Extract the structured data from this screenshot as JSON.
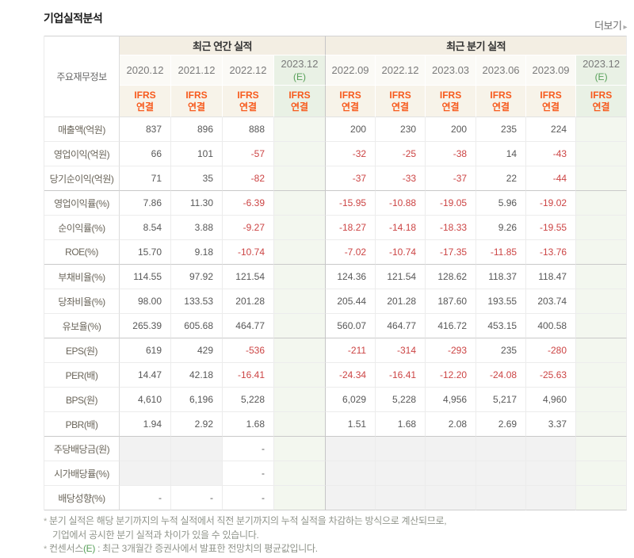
{
  "page": {
    "title": "기업실적분석",
    "more_label": "더보기",
    "more_arrow": "▸"
  },
  "colors": {
    "negative_value": "#cc4444",
    "estimate_green": "#58a05a",
    "ifrs_orange": "#f75a1d",
    "header_beige": "#f3eee3",
    "estimate_header_bg": "#e9f1e5",
    "estimate_body_bg": "#f3f7ef",
    "shaded_cell_bg": "#f2f2f2"
  },
  "table": {
    "corner_label": "주요재무정보",
    "groups": [
      {
        "label": "최근 연간 실적",
        "span": 4
      },
      {
        "label": "최근 분기 실적",
        "span": 6
      }
    ],
    "ifrs_label": {
      "line1": "IFRS",
      "line2": "연결"
    },
    "columns": [
      {
        "period": "2020.12",
        "estimate": false
      },
      {
        "period": "2021.12",
        "estimate": false
      },
      {
        "period": "2022.12",
        "estimate": false
      },
      {
        "period": "2023.12",
        "estimate": true,
        "estimate_suffix": "(E)"
      },
      {
        "period": "2022.09",
        "estimate": false
      },
      {
        "period": "2022.12",
        "estimate": false
      },
      {
        "period": "2023.03",
        "estimate": false
      },
      {
        "period": "2023.06",
        "estimate": false
      },
      {
        "period": "2023.09",
        "estimate": false
      },
      {
        "period": "2023.12",
        "estimate": true,
        "estimate_suffix": "(E)"
      }
    ],
    "rows": [
      {
        "label": "매출액(억원)",
        "values": [
          "837",
          "896",
          "888",
          "",
          "200",
          "230",
          "200",
          "235",
          "224",
          ""
        ]
      },
      {
        "label": "영업이익(억원)",
        "values": [
          "66",
          "101",
          "-57",
          "",
          "-32",
          "-25",
          "-38",
          "14",
          "-43",
          ""
        ]
      },
      {
        "label": "당기순이익(억원)",
        "values": [
          "71",
          "35",
          "-82",
          "",
          "-37",
          "-33",
          "-37",
          "22",
          "-44",
          ""
        ],
        "group_end": true
      },
      {
        "label": "영업이익률(%)",
        "values": [
          "7.86",
          "11.30",
          "-6.39",
          "",
          "-15.95",
          "-10.88",
          "-19.05",
          "5.96",
          "-19.02",
          ""
        ]
      },
      {
        "label": "순이익률(%)",
        "values": [
          "8.54",
          "3.88",
          "-9.27",
          "",
          "-18.27",
          "-14.18",
          "-18.33",
          "9.26",
          "-19.55",
          ""
        ]
      },
      {
        "label": "ROE(%)",
        "values": [
          "15.70",
          "9.18",
          "-10.74",
          "",
          "-7.02",
          "-10.74",
          "-17.35",
          "-11.85",
          "-13.76",
          ""
        ],
        "group_end": true
      },
      {
        "label": "부채비율(%)",
        "values": [
          "114.55",
          "97.92",
          "121.54",
          "",
          "124.36",
          "121.54",
          "128.62",
          "118.37",
          "118.47",
          ""
        ]
      },
      {
        "label": "당좌비율(%)",
        "values": [
          "98.00",
          "133.53",
          "201.28",
          "",
          "205.44",
          "201.28",
          "187.60",
          "193.55",
          "203.74",
          ""
        ]
      },
      {
        "label": "유보율(%)",
        "values": [
          "265.39",
          "605.68",
          "464.77",
          "",
          "560.07",
          "464.77",
          "416.72",
          "453.15",
          "400.58",
          ""
        ],
        "group_end": true
      },
      {
        "label": "EPS(원)",
        "values": [
          "619",
          "429",
          "-536",
          "",
          "-211",
          "-314",
          "-293",
          "235",
          "-280",
          ""
        ]
      },
      {
        "label": "PER(배)",
        "values": [
          "14.47",
          "42.18",
          "-16.41",
          "",
          "-24.34",
          "-16.41",
          "-12.20",
          "-24.08",
          "-25.63",
          ""
        ]
      },
      {
        "label": "BPS(원)",
        "values": [
          "4,610",
          "6,196",
          "5,228",
          "",
          "6,029",
          "5,228",
          "4,956",
          "5,217",
          "4,960",
          ""
        ]
      },
      {
        "label": "PBR(배)",
        "values": [
          "1.94",
          "2.92",
          "1.68",
          "",
          "1.51",
          "1.68",
          "2.08",
          "2.69",
          "3.37",
          ""
        ],
        "group_end": true
      },
      {
        "label": "주당배당금(원)",
        "values": [
          "",
          "",
          "-",
          "",
          "",
          "",
          "",
          "",
          "",
          ""
        ],
        "shaded": [
          0,
          1,
          4,
          5,
          6,
          7,
          8
        ]
      },
      {
        "label": "시가배당률(%)",
        "values": [
          "",
          "",
          "-",
          "",
          "",
          "",
          "",
          "",
          "",
          ""
        ],
        "shaded": [
          0,
          1,
          4,
          5,
          6,
          7,
          8
        ]
      },
      {
        "label": "배당성향(%)",
        "values": [
          "-",
          "-",
          "-",
          "",
          "",
          "",
          "",
          "",
          "",
          ""
        ],
        "shaded": [
          4,
          5,
          6,
          7,
          8
        ]
      }
    ]
  },
  "footnotes": {
    "bullet": "*",
    "note1_line1": "분기 실적은 해당 분기까지의 누적 실적에서 직전 분기까지의 누적 실적을 차감하는 방식으로 계산되므로,",
    "note1_line2": "기업에서 공시한 분기 실적과 차이가 있을 수 있습니다.",
    "note2_prefix": "컨센서스",
    "note2_estimate": "(E)",
    "note2_suffix": " : 최근 3개월간 증권사에서 발표한 전망치의 평균값입니다."
  }
}
